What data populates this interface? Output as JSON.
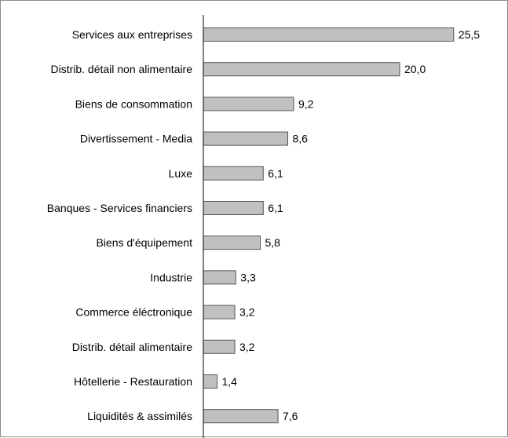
{
  "chart_data": {
    "type": "bar",
    "orientation": "horizontal",
    "categories": [
      "Services aux entreprises",
      "Distrib. détail non alimentaire",
      "Biens de consommation",
      "Divertissement - Media",
      "Luxe",
      "Banques - Services financiers",
      "Biens d'équipement",
      "Industrie",
      "Commerce éléctronique",
      "Distrib. détail alimentaire",
      "Hôtellerie - Restauration",
      "Liquidités & assimilés"
    ],
    "values": [
      25.5,
      20.0,
      9.2,
      8.6,
      6.1,
      6.1,
      5.8,
      3.3,
      3.2,
      3.2,
      1.4,
      7.6
    ],
    "value_labels": [
      "25,5",
      "20,0",
      "9,2",
      "8,6",
      "6,1",
      "6,1",
      "5,8",
      "3,3",
      "3,2",
      "3,2",
      "1,4",
      "7,6"
    ],
    "title": "",
    "xlabel": "",
    "ylabel": "",
    "xlim": [
      0,
      30
    ],
    "grid": false,
    "legend": "none",
    "bar_color": "#c0c0c0",
    "bar_edge_color": "#555555"
  }
}
